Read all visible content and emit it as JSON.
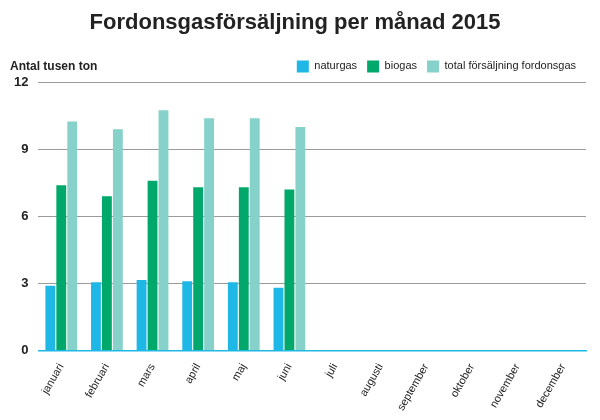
{
  "chart_data": {
    "type": "bar",
    "title": "Fordonsgasförsäljning per månad 2015",
    "y_label": "Antal tusen ton",
    "categories": [
      "januari",
      "februari",
      "mars",
      "april",
      "maj",
      "juni",
      "juli",
      "augusti",
      "september",
      "oktober",
      "november",
      "december"
    ],
    "series": [
      {
        "name": "naturgas",
        "color": "#1fb8e6",
        "values": [
          2.9,
          3.05,
          3.15,
          3.1,
          3.05,
          2.8,
          null,
          null,
          null,
          null,
          null,
          null
        ]
      },
      {
        "name": "biogas",
        "color": "#00a86b",
        "values": [
          7.4,
          6.9,
          7.6,
          7.3,
          7.3,
          7.2,
          null,
          null,
          null,
          null,
          null,
          null
        ]
      },
      {
        "name": "total försäljning fordonsgas",
        "color": "#86d1c9",
        "values": [
          10.25,
          9.9,
          10.75,
          10.4,
          10.4,
          10.0,
          null,
          null,
          null,
          null,
          null,
          null
        ]
      }
    ],
    "ylim": [
      0,
      12
    ],
    "yticks": [
      0,
      3,
      6,
      9,
      12
    ],
    "grid": true,
    "legend": "top-right"
  }
}
